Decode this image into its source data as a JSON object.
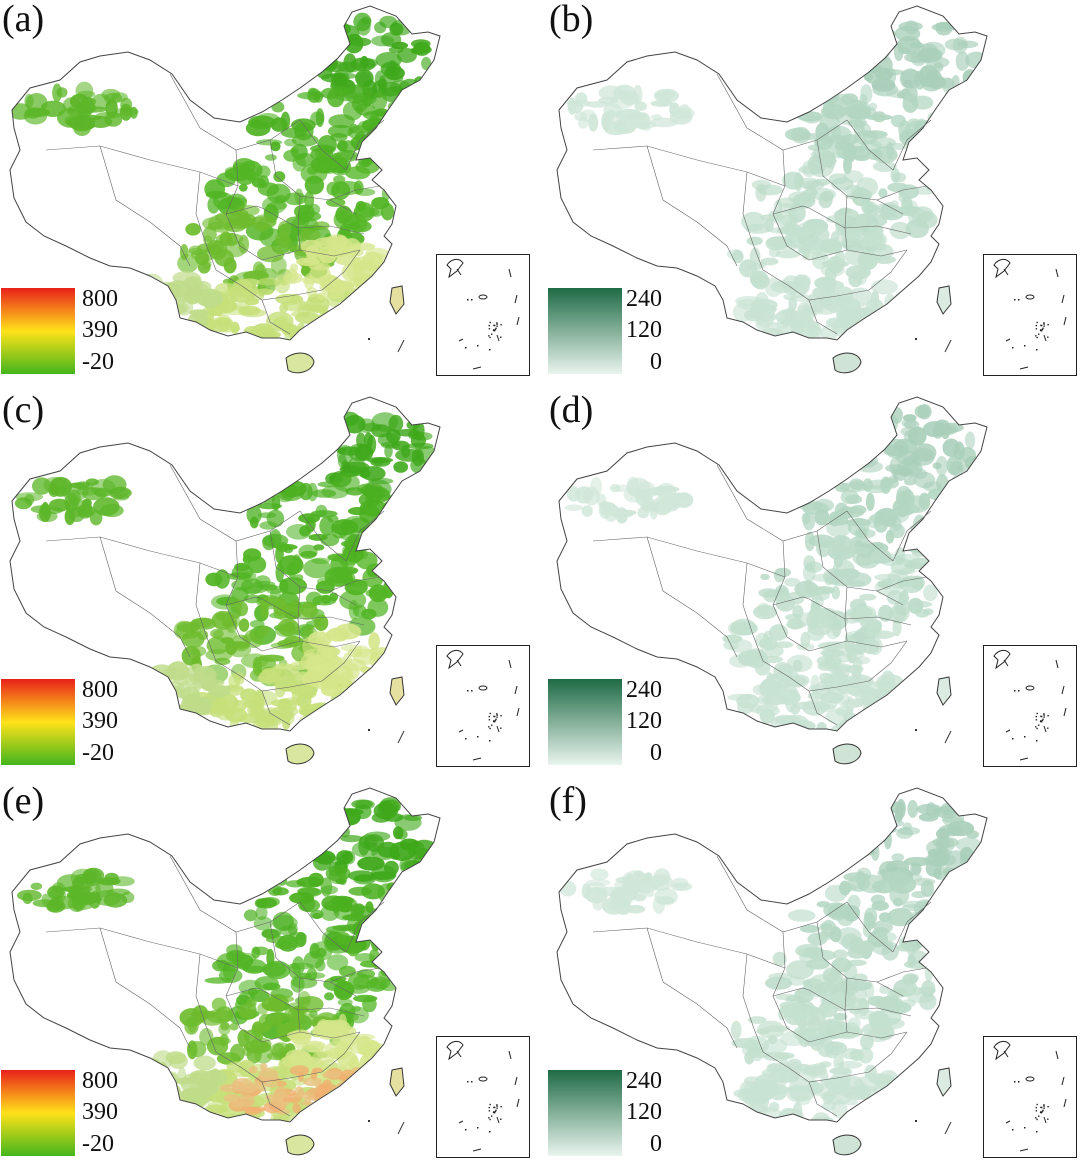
{
  "panels": [
    {
      "id": "a",
      "label": "(a)",
      "type": "diff"
    },
    {
      "id": "b",
      "label": "(b)",
      "type": "std"
    },
    {
      "id": "c",
      "label": "(c)",
      "type": "diff"
    },
    {
      "id": "d",
      "label": "(d)",
      "type": "std"
    },
    {
      "id": "e",
      "label": "(e)",
      "type": "diff"
    },
    {
      "id": "f",
      "label": "(f)",
      "type": "std"
    }
  ],
  "legend_diff": {
    "max": "800",
    "mid": "390",
    "min": "-20",
    "colors": [
      "#e8201a",
      "#ffe21a",
      "#43b51c"
    ]
  },
  "legend_std": {
    "max": "240",
    "mid": "120",
    "min": "0",
    "colors": [
      "#1f6b45",
      "#e9f4ee"
    ]
  }
}
